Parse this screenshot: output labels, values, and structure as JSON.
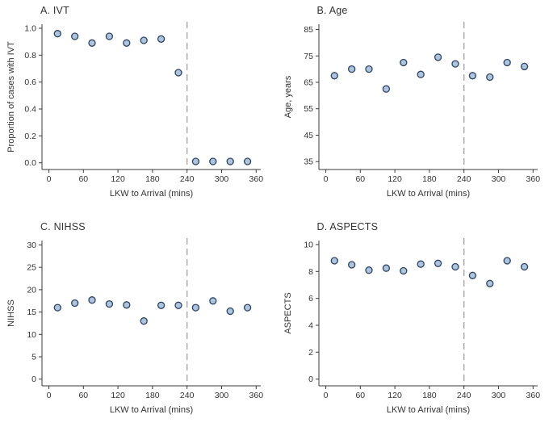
{
  "style": {
    "marker_fill": "#aec3dc",
    "marker_stroke": "#2a4468",
    "axis_color": "#3a3a3a",
    "vline_color": "#a8a8a8",
    "text_color": "#333333"
  },
  "chart_data": [
    {
      "id": "ivt",
      "type": "scatter",
      "title": "A. IVT",
      "xlabel": "LKW to Arrival (mins)",
      "ylabel": "Proportion of cases with IVT",
      "xlim": [
        -12,
        368
      ],
      "ylim": [
        -0.05,
        1.03
      ],
      "xtick_values": [
        0,
        60,
        120,
        180,
        240,
        300,
        360
      ],
      "xtick_labels": [
        "0",
        "60",
        "120",
        "180",
        "240",
        "300",
        "360"
      ],
      "ytick_values": [
        0.0,
        0.2,
        0.4,
        0.6,
        0.8,
        1.0
      ],
      "ytick_labels": [
        "0.0",
        "0.2",
        "0.4",
        "0.6",
        "0.8",
        "1.0"
      ],
      "vline": 240,
      "grid": false,
      "legend": null,
      "x": [
        15,
        45,
        75,
        105,
        135,
        165,
        195,
        225,
        255,
        285,
        315,
        345
      ],
      "y": [
        0.96,
        0.94,
        0.89,
        0.94,
        0.89,
        0.91,
        0.92,
        0.67,
        0.01,
        0.01,
        0.01,
        0.01
      ]
    },
    {
      "id": "age",
      "type": "scatter",
      "title": "B. Age",
      "xlabel": "LKW to Arrival (mins)",
      "ylabel": "Age, years",
      "xlim": [
        -12,
        368
      ],
      "ylim": [
        32,
        87
      ],
      "xtick_values": [
        0,
        60,
        120,
        180,
        240,
        300,
        360
      ],
      "xtick_labels": [
        "0",
        "60",
        "120",
        "180",
        "240",
        "300",
        "360"
      ],
      "ytick_values": [
        35,
        45,
        55,
        65,
        75,
        85
      ],
      "ytick_labels": [
        "35",
        "45",
        "55",
        "65",
        "75",
        "85"
      ],
      "vline": 240,
      "grid": false,
      "legend": null,
      "x": [
        15,
        45,
        75,
        105,
        135,
        165,
        195,
        225,
        255,
        285,
        315,
        345
      ],
      "y": [
        67.5,
        70,
        70,
        62.5,
        72.5,
        68,
        74.5,
        72,
        67.5,
        67,
        72.5,
        71
      ]
    },
    {
      "id": "nihss",
      "type": "scatter",
      "title": "C. NIHSS",
      "xlabel": "LKW to Arrival (mins)",
      "ylabel": "NIHSS",
      "xlim": [
        -12,
        368
      ],
      "ylim": [
        -1.5,
        31
      ],
      "xtick_values": [
        0,
        60,
        120,
        180,
        240,
        300,
        360
      ],
      "xtick_labels": [
        "0",
        "60",
        "120",
        "180",
        "240",
        "300",
        "360"
      ],
      "ytick_values": [
        0,
        5,
        10,
        15,
        20,
        25,
        30
      ],
      "ytick_labels": [
        "0",
        "5",
        "10",
        "15",
        "20",
        "25",
        "30"
      ],
      "vline": 240,
      "grid": false,
      "legend": null,
      "x": [
        15,
        45,
        75,
        105,
        135,
        165,
        195,
        225,
        255,
        285,
        315,
        345
      ],
      "y": [
        16,
        17,
        17.7,
        16.8,
        16.6,
        13,
        16.5,
        16.5,
        16,
        17.5,
        15.2,
        16
      ]
    },
    {
      "id": "aspects",
      "type": "scatter",
      "title": "D. ASPECTS",
      "xlabel": "LKW to Arrival (mins)",
      "ylabel": "ASPECTS",
      "xlim": [
        -12,
        368
      ],
      "ylim": [
        -0.5,
        10.3
      ],
      "xtick_values": [
        0,
        60,
        120,
        180,
        240,
        300,
        360
      ],
      "xtick_labels": [
        "0",
        "60",
        "120",
        "180",
        "240",
        "300",
        "360"
      ],
      "ytick_values": [
        0,
        2,
        4,
        6,
        8,
        10
      ],
      "ytick_labels": [
        "0",
        "2",
        "4",
        "6",
        "8",
        "10"
      ],
      "vline": 240,
      "grid": false,
      "legend": null,
      "x": [
        15,
        45,
        75,
        105,
        135,
        165,
        195,
        225,
        255,
        285,
        315,
        345
      ],
      "y": [
        8.8,
        8.5,
        8.1,
        8.25,
        8.05,
        8.55,
        8.6,
        8.35,
        7.7,
        7.1,
        8.8,
        8.35
      ]
    }
  ]
}
